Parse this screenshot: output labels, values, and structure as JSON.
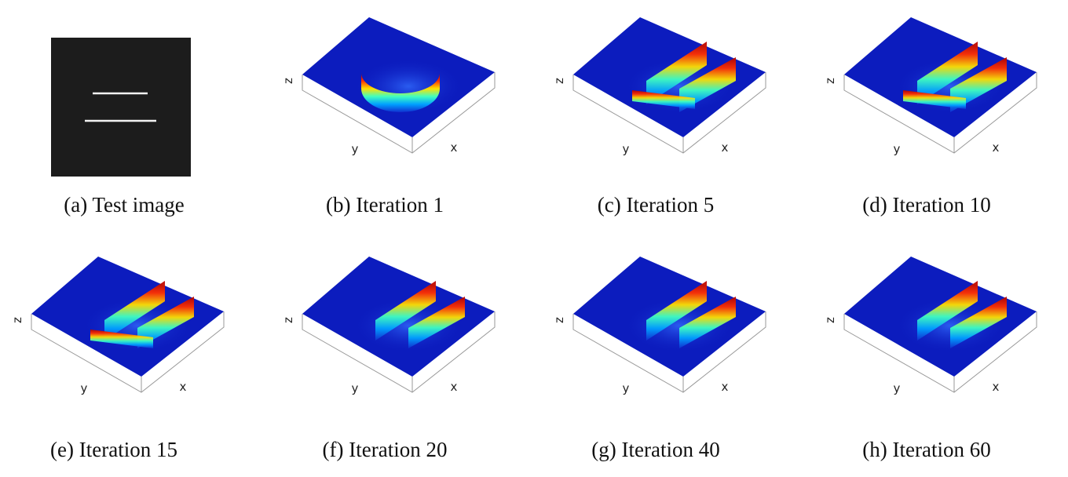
{
  "panels": [
    {
      "caption": "(a) Test image"
    },
    {
      "caption": "(b) Iteration 1",
      "z_label": "z",
      "y_label": "y",
      "x_label": "x"
    },
    {
      "caption": "(c) Iteration 5",
      "z_label": "z",
      "y_label": "y",
      "x_label": "x"
    },
    {
      "caption": "(d) Iteration 10",
      "z_label": "z",
      "y_label": "y",
      "x_label": "x"
    },
    {
      "caption": "(e) Iteration 15",
      "z_label": "z",
      "y_label": "y",
      "x_label": "x"
    },
    {
      "caption": "(f) Iteration 20",
      "z_label": "z",
      "y_label": "y",
      "x_label": "x"
    },
    {
      "caption": "(g) Iteration 40",
      "z_label": "z",
      "y_label": "y",
      "x_label": "x"
    },
    {
      "caption": "(h) Iteration 60",
      "z_label": "z",
      "y_label": "y",
      "x_label": "x"
    }
  ]
}
